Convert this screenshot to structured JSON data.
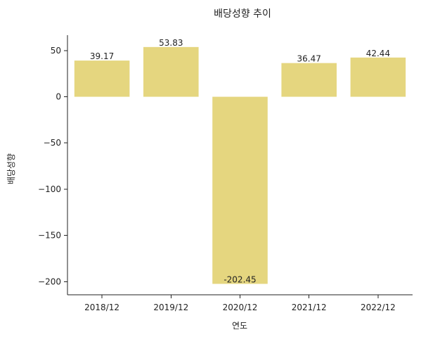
{
  "chart_data": {
    "type": "bar",
    "title": "배당성향 추이",
    "xlabel": "연도",
    "ylabel": "배당성향",
    "categories": [
      "2018/12",
      "2019/12",
      "2020/12",
      "2021/12",
      "2022/12"
    ],
    "values": [
      39.17,
      53.83,
      -202.45,
      36.47,
      42.44
    ],
    "data_labels": [
      "39.17",
      "53.83",
      "-202.45",
      "36.47",
      "42.44"
    ],
    "ylim": [
      -214.264,
      66.644
    ],
    "yticks": [
      -200,
      -150,
      -100,
      -50,
      0,
      50
    ],
    "ytick_labels": [
      "−200",
      "−150",
      "−100",
      "−50",
      "0",
      "50"
    ],
    "grid": false,
    "legend": "none",
    "colors": {
      "bar": "#e5d67f",
      "text": "#222222",
      "axis": "#222222",
      "background": "#ffffff"
    }
  }
}
